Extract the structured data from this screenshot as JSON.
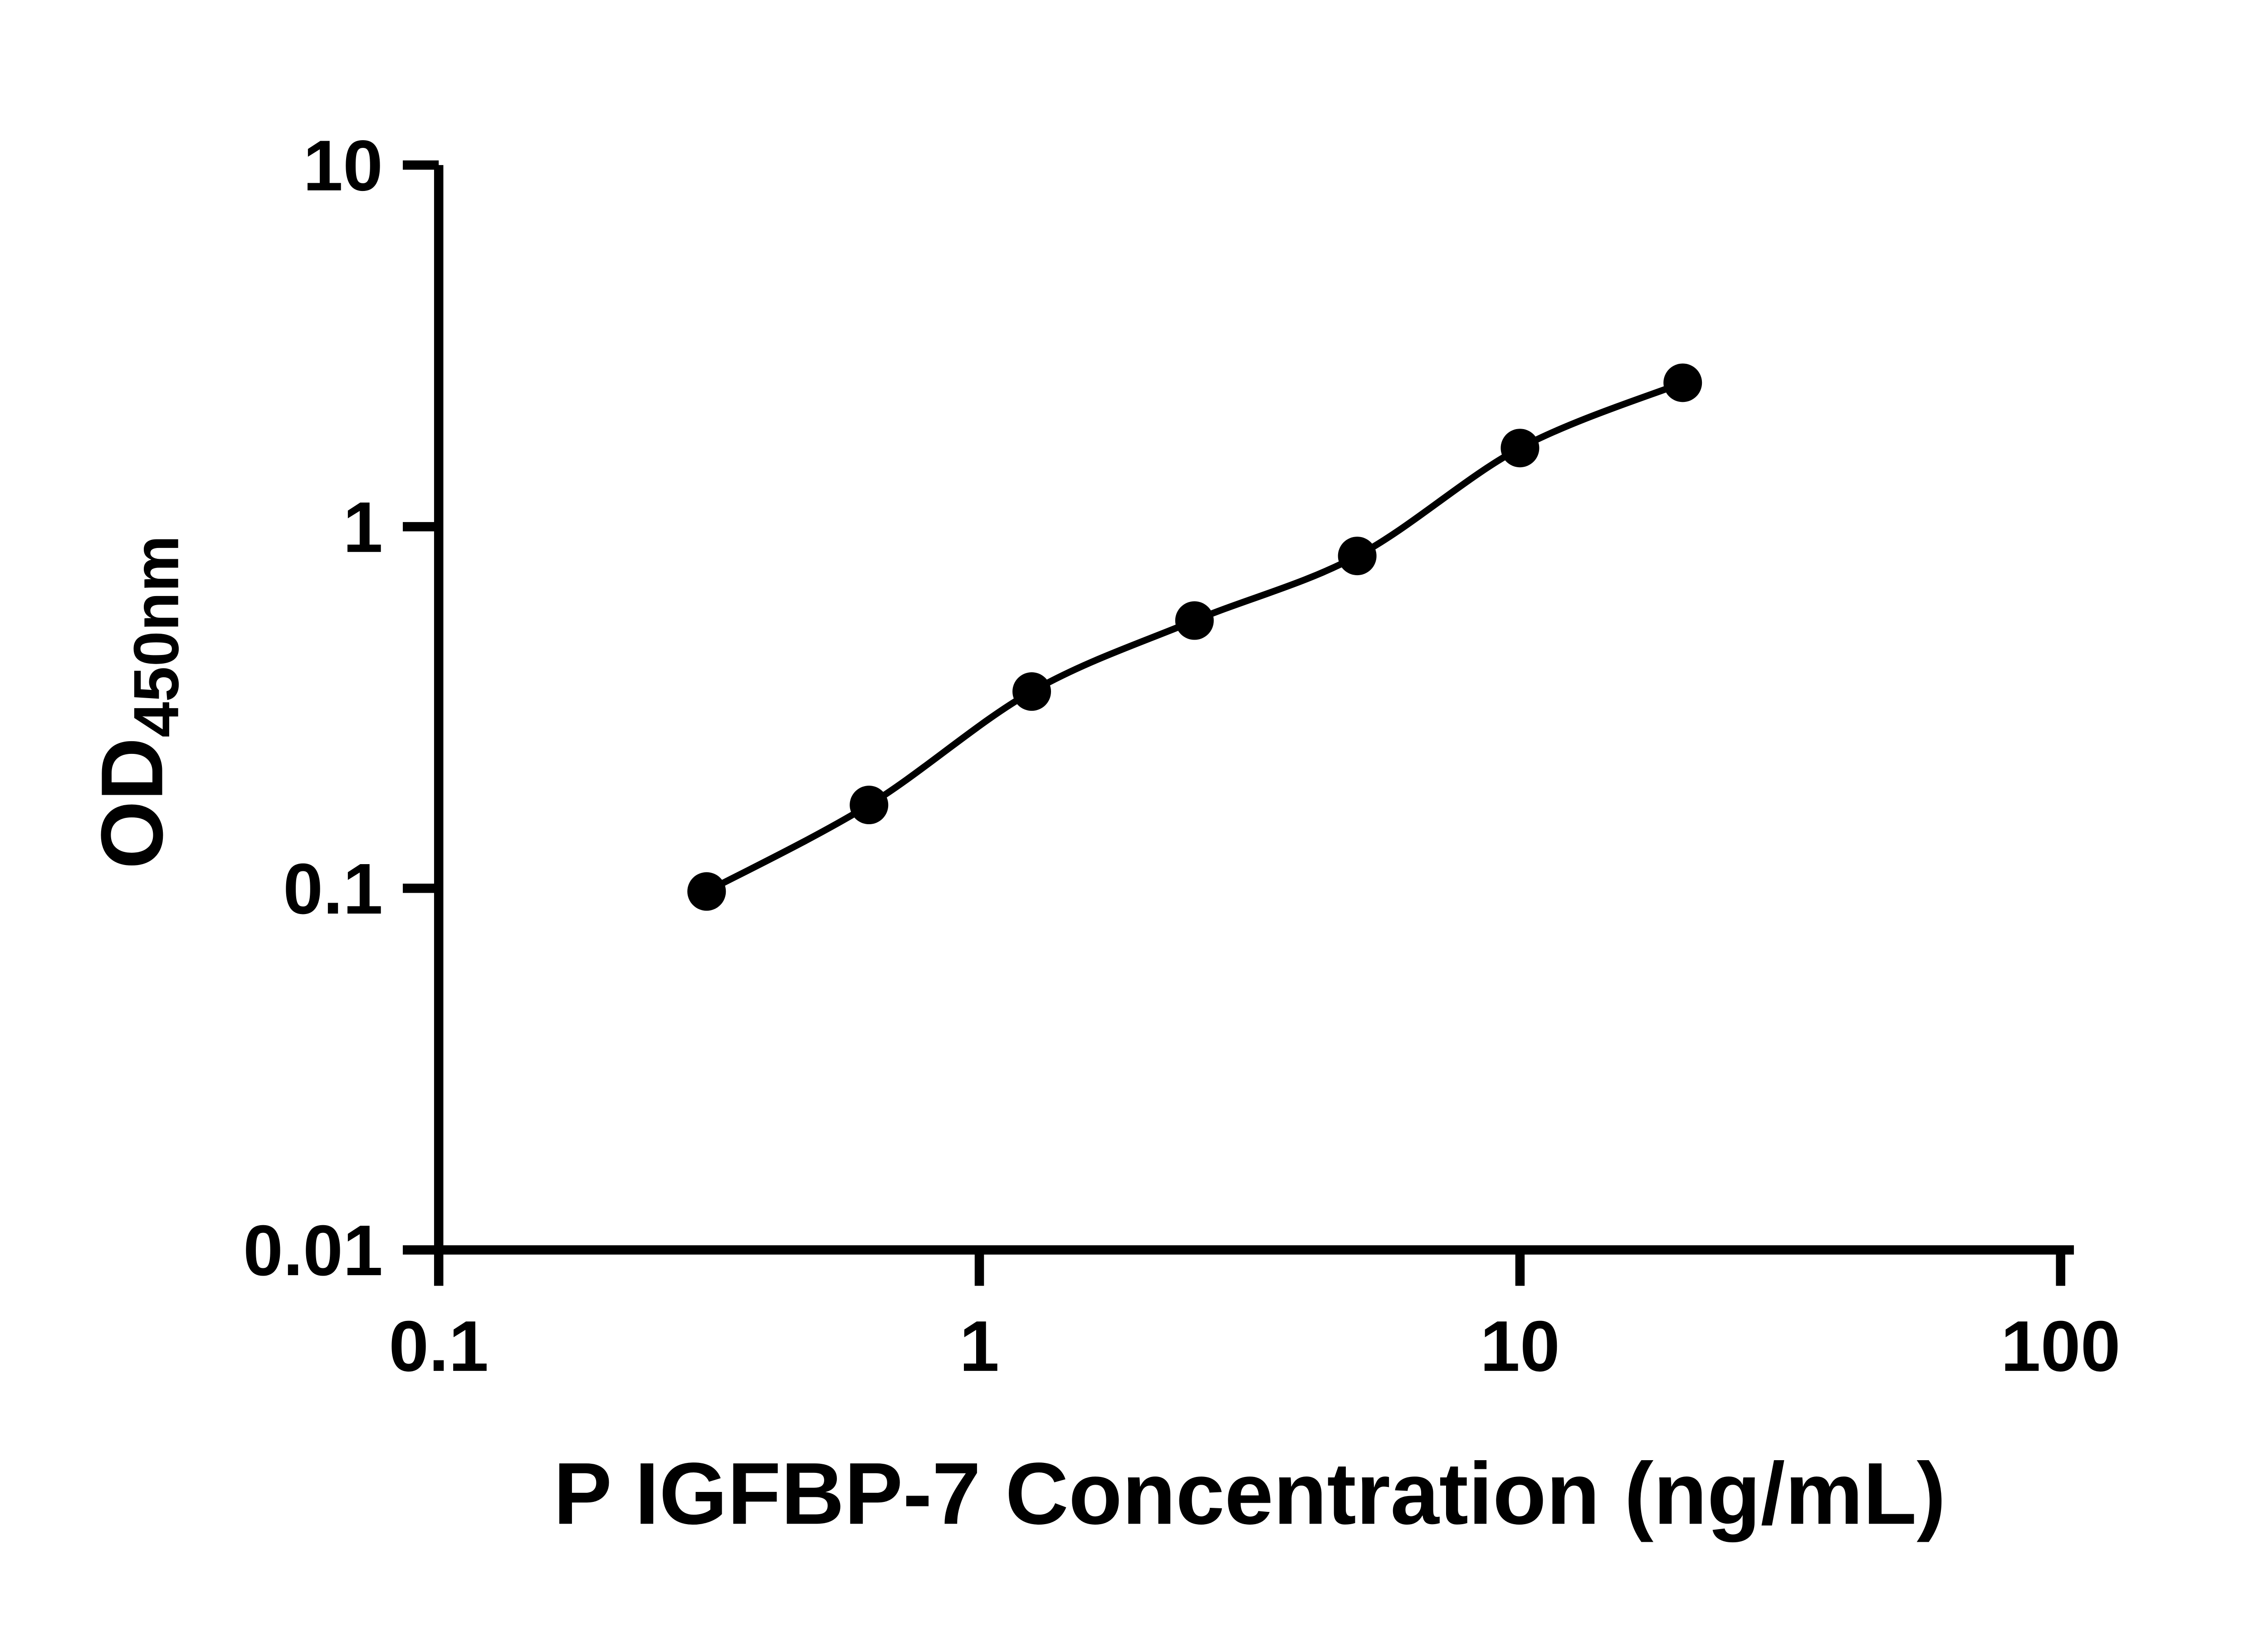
{
  "chart_data": {
    "type": "scatter",
    "xlabel": "P IGFBP-7 Concentration (ng/mL)",
    "ylabel_main": "OD",
    "ylabel_sub": "450nm",
    "x_scale": "log",
    "y_scale": "log",
    "xlim": [
      0.1,
      100
    ],
    "ylim": [
      0.01,
      10
    ],
    "grid": false,
    "legend": false,
    "axis_color": "#000000",
    "x_ticks": [
      {
        "value": 0.1,
        "label": "0.1"
      },
      {
        "value": 1,
        "label": "1"
      },
      {
        "value": 10,
        "label": "10"
      },
      {
        "value": 100,
        "label": "100"
      }
    ],
    "y_ticks": [
      {
        "value": 0.01,
        "label": "0.01"
      },
      {
        "value": 0.1,
        "label": "0.1"
      },
      {
        "value": 1,
        "label": "1"
      },
      {
        "value": 10,
        "label": "10"
      }
    ],
    "series": [
      {
        "marker": "circle",
        "color": "#000000",
        "line": "smooth",
        "points": [
          {
            "x": 0.313,
            "y": 0.098
          },
          {
            "x": 0.625,
            "y": 0.17
          },
          {
            "x": 1.25,
            "y": 0.35
          },
          {
            "x": 2.5,
            "y": 0.55
          },
          {
            "x": 5,
            "y": 0.83
          },
          {
            "x": 10,
            "y": 1.65
          },
          {
            "x": 20,
            "y": 2.5
          }
        ]
      }
    ]
  }
}
